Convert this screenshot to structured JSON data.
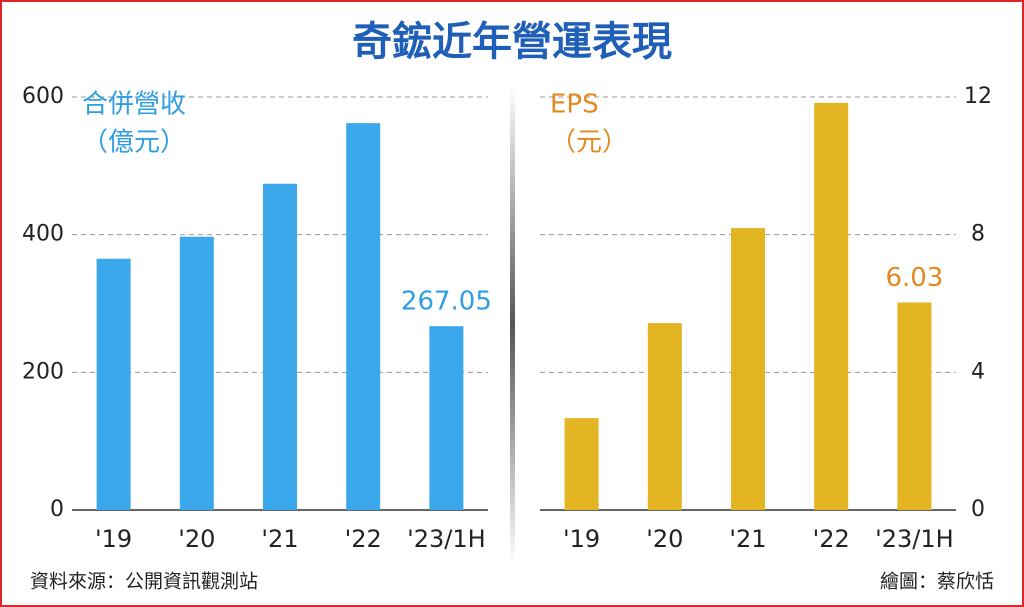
{
  "title": "奇鋐近年營運表現",
  "source": "資料來源：公開資訊觀測站",
  "credit": "繪圖：蔡欣恬",
  "chart_data": [
    {
      "type": "bar",
      "y_label": [
        "合併營收",
        "（億元）"
      ],
      "label_color": "#2f9ee2",
      "categories": [
        "'19",
        "'20",
        "'21",
        "'22",
        "'23/1H"
      ],
      "values": [
        365,
        397,
        474,
        562,
        267.05
      ],
      "value_labels": [
        null,
        null,
        null,
        null,
        "267.05"
      ],
      "color": "#3aa8ea",
      "ylim": [
        0,
        600
      ],
      "yticks": [
        0,
        200,
        400,
        600
      ],
      "yaxis_side": "left",
      "grid": true
    },
    {
      "type": "bar",
      "y_label": [
        "EPS",
        "（元）"
      ],
      "label_color": "#e2891f",
      "categories": [
        "'19",
        "'20",
        "'21",
        "'22",
        "'23/1H"
      ],
      "values": [
        2.67,
        5.43,
        8.19,
        11.83,
        6.03
      ],
      "value_labels": [
        null,
        null,
        null,
        null,
        "6.03"
      ],
      "color": "#e3b522",
      "ylim": [
        0,
        12
      ],
      "yticks": [
        0,
        4,
        8,
        12
      ],
      "yaxis_side": "right",
      "grid": true
    }
  ]
}
